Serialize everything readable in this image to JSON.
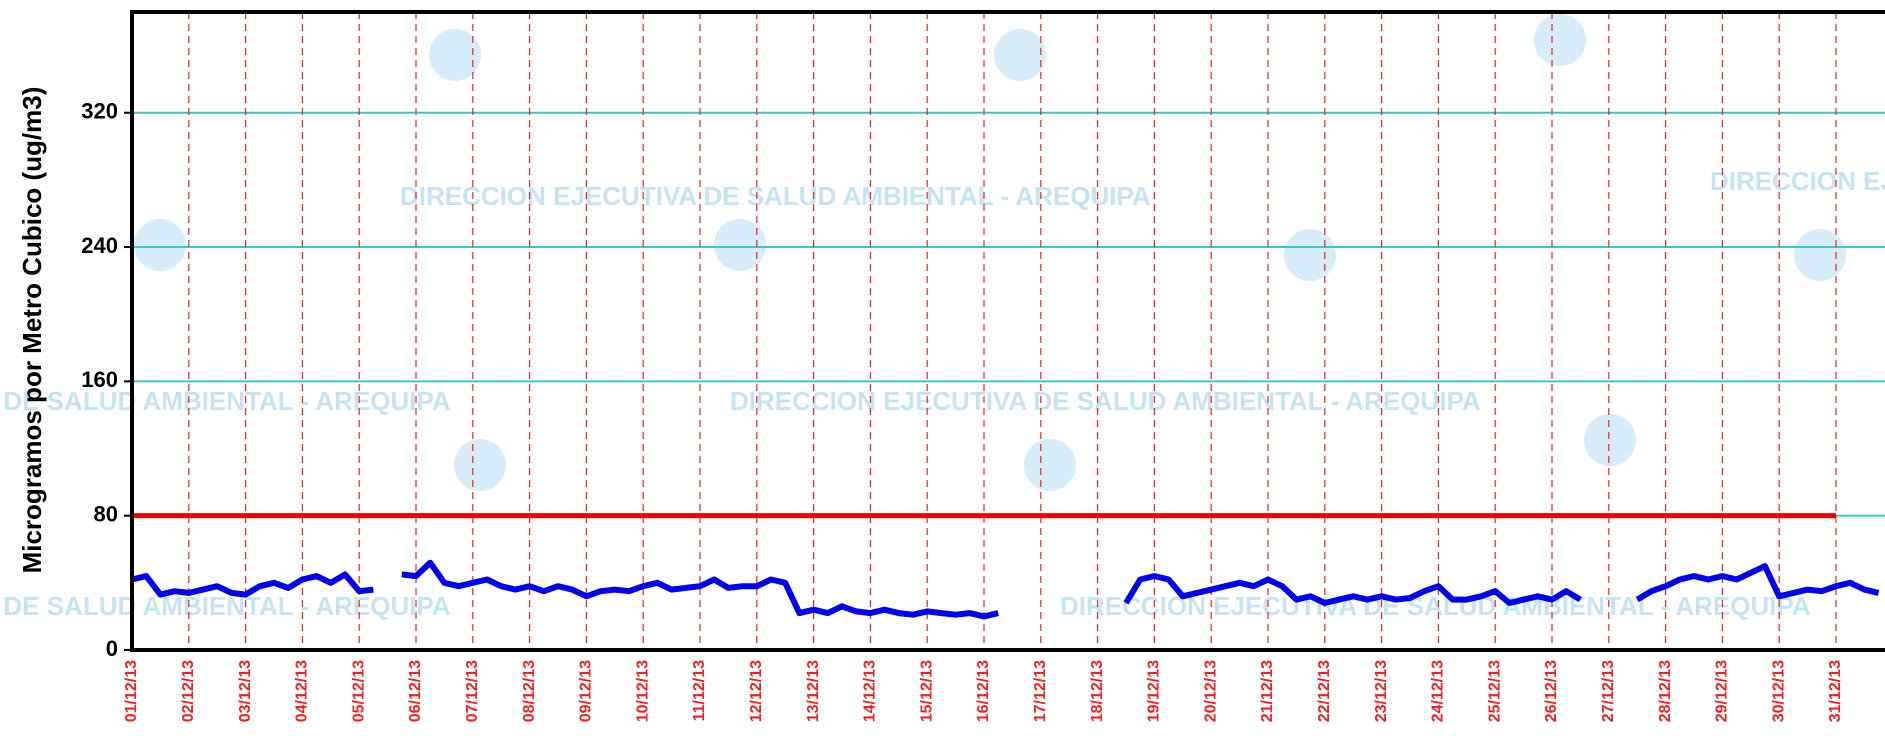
{
  "chart_data": {
    "type": "line",
    "y_label": "Microgramos por Metro Cubico (ug/m3)",
    "watermark": "DIRECCION EJECUTIVA DE SALUD AMBIENTAL - AREQUIPA",
    "categories": [
      "01/12/13",
      null,
      null,
      null,
      "02/12/13",
      null,
      null,
      null,
      "03/12/13",
      null,
      null,
      null,
      "04/12/13",
      null,
      null,
      null,
      "05/12/13",
      null,
      null,
      null,
      "06/12/13",
      null,
      null,
      null,
      "07/12/13",
      null,
      null,
      null,
      "08/12/13",
      null,
      null,
      null,
      "09/12/13",
      null,
      null,
      null,
      "10/12/13",
      null,
      null,
      null,
      "11/12/13",
      null,
      null,
      null,
      "12/12/13",
      null,
      null,
      null,
      "13/12/13",
      null,
      null,
      null,
      "14/12/13",
      null,
      null,
      null,
      "15/12/13",
      null,
      null,
      null,
      "16/12/13",
      null,
      null,
      null,
      "17/12/13",
      null,
      null,
      null,
      "18/12/13",
      null,
      null,
      null,
      "19/12/13",
      null,
      null,
      null,
      "20/12/13",
      null,
      null,
      null,
      "21/12/13",
      null,
      null,
      null,
      "22/12/13",
      null,
      null,
      null,
      "23/12/13",
      null,
      null,
      null,
      "24/12/13",
      null,
      null,
      null,
      "25/12/13",
      null,
      null,
      null,
      "26/12/13",
      null,
      null,
      null,
      "27/12/13",
      null,
      null,
      null,
      "28/12/13",
      null,
      null,
      null,
      "29/12/13",
      null,
      null,
      null,
      "30/12/13",
      null,
      null,
      null,
      "31/12/13",
      null,
      null,
      null
    ],
    "series": [
      {
        "color": "#0000ee",
        "values": [
          42,
          44,
          33,
          35,
          34,
          36,
          38,
          34,
          33,
          38,
          40,
          37,
          42,
          44,
          40,
          45,
          35,
          36,
          null,
          45,
          44,
          52,
          40,
          38,
          40,
          42,
          38,
          36,
          38,
          35,
          38,
          36,
          32,
          35,
          36,
          35,
          38,
          40,
          36,
          37,
          38,
          42,
          37,
          38,
          38,
          42,
          40,
          22,
          24,
          22,
          26,
          23,
          22,
          24,
          22,
          21,
          23,
          22,
          21,
          22,
          20,
          22,
          null,
          null,
          null,
          null,
          null,
          null,
          null,
          null,
          28,
          42,
          44,
          42,
          32,
          34,
          36,
          38,
          40,
          38,
          42,
          38,
          30,
          32,
          28,
          30,
          32,
          30,
          32,
          30,
          31,
          35,
          38,
          30,
          30,
          32,
          35,
          28,
          30,
          32,
          30,
          35,
          30,
          null,
          null,
          null,
          30,
          35,
          38,
          42,
          44,
          42,
          44,
          42,
          46,
          50,
          32,
          34,
          36,
          35,
          38,
          40,
          36,
          34
        ]
      }
    ],
    "limit": {
      "value": 80,
      "color": "#ee0000"
    },
    "ylim": [
      0,
      380
    ],
    "yticks": [
      0,
      80,
      160,
      240,
      320
    ],
    "grid_color": "#40c4c4",
    "day_line_color": "#ee2222"
  }
}
